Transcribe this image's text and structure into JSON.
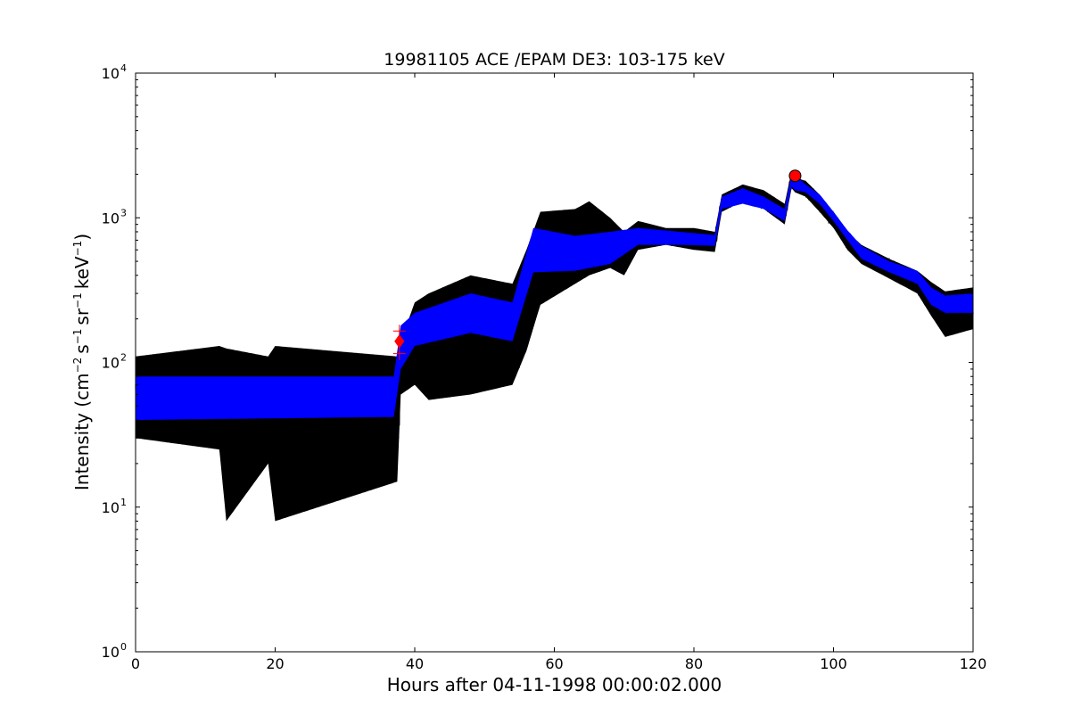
{
  "chart_data": {
    "type": "line",
    "title": "19981105 ACE /EPAM DE3: 103-175 keV",
    "xlabel": "Hours after 04-11-1998 00:00:02.000",
    "ylabel": {
      "prefix": "Intensity (cm",
      "exp1": "−2",
      "s": "s",
      "exp2": "−1",
      "sr": "sr",
      "exp3": "−1",
      "kev": "keV",
      "exp4": "−1",
      "suffix": ")"
    },
    "xlim": [
      0,
      120
    ],
    "ylim": [
      1,
      10000
    ],
    "yscale": "log",
    "x_ticks": [
      "0",
      "20",
      "40",
      "60",
      "80",
      "100",
      "120"
    ],
    "y_ticks": [
      {
        "base": "10",
        "exp": "0"
      },
      {
        "base": "10",
        "exp": "1"
      },
      {
        "base": "10",
        "exp": "2"
      },
      {
        "base": "10",
        "exp": "3"
      },
      {
        "base": "10",
        "exp": "4"
      }
    ],
    "grid": false,
    "series": [
      {
        "style": "raw",
        "color": "#000000",
        "envelope": {
          "x": [
            0,
            12,
            13,
            19,
            20,
            37.5,
            38,
            40,
            42,
            48,
            54,
            56,
            58,
            63,
            65,
            68,
            70,
            72,
            76,
            80,
            83,
            84,
            87,
            90,
            93,
            94,
            94.5,
            96,
            98,
            100,
            102,
            104,
            108,
            112,
            114,
            116,
            120
          ],
          "low": [
            30,
            25,
            8,
            20,
            8,
            15,
            60,
            70,
            55,
            60,
            70,
            120,
            250,
            350,
            400,
            450,
            400,
            600,
            650,
            600,
            580,
            1100,
            1300,
            1150,
            900,
            1600,
            1500,
            1400,
            1100,
            850,
            600,
            480,
            380,
            300,
            210,
            150,
            170
          ],
          "high": [
            110,
            130,
            125,
            110,
            130,
            110,
            140,
            260,
            300,
            400,
            350,
            600,
            1100,
            1150,
            1300,
            1000,
            800,
            950,
            850,
            850,
            800,
            1450,
            1700,
            1550,
            1250,
            2100,
            1900,
            1800,
            1450,
            1100,
            800,
            650,
            520,
            430,
            360,
            310,
            330
          ]
        }
      },
      {
        "style": "smoothed",
        "color": "#0000ff",
        "x": [
          0,
          37,
          38,
          40,
          48,
          54,
          57,
          63,
          68,
          72,
          78,
          83,
          84,
          87,
          90,
          93,
          94,
          94.5,
          96,
          98,
          100,
          102,
          104,
          108,
          112,
          114,
          116,
          120
        ],
        "low": [
          40,
          42,
          90,
          130,
          160,
          140,
          420,
          430,
          480,
          650,
          650,
          640,
          1150,
          1250,
          1150,
          950,
          1650,
          1550,
          1500,
          1250,
          950,
          700,
          520,
          420,
          350,
          250,
          220,
          220
        ],
        "high": [
          80,
          80,
          180,
          220,
          300,
          260,
          850,
          750,
          800,
          850,
          800,
          760,
          1400,
          1600,
          1400,
          1150,
          2000,
          1950,
          1700,
          1450,
          1100,
          820,
          640,
          500,
          430,
          330,
          290,
          300
        ]
      }
    ],
    "markers": [
      {
        "label": "onset",
        "shape": "diamond",
        "x": 37.8,
        "y": 140,
        "color": "#ff0000",
        "fill": "#ff0000"
      },
      {
        "label": "onset-cross-upper",
        "shape": "plus",
        "x": 37.8,
        "y": 165,
        "color": "#ff0000"
      },
      {
        "label": "onset-cross-lower",
        "shape": "plus",
        "x": 37.8,
        "y": 115,
        "color": "#ff0000"
      },
      {
        "label": "peak",
        "shape": "circle",
        "x": 94.5,
        "y": 1950,
        "color": "#000000",
        "fill": "#ff0000"
      }
    ]
  }
}
